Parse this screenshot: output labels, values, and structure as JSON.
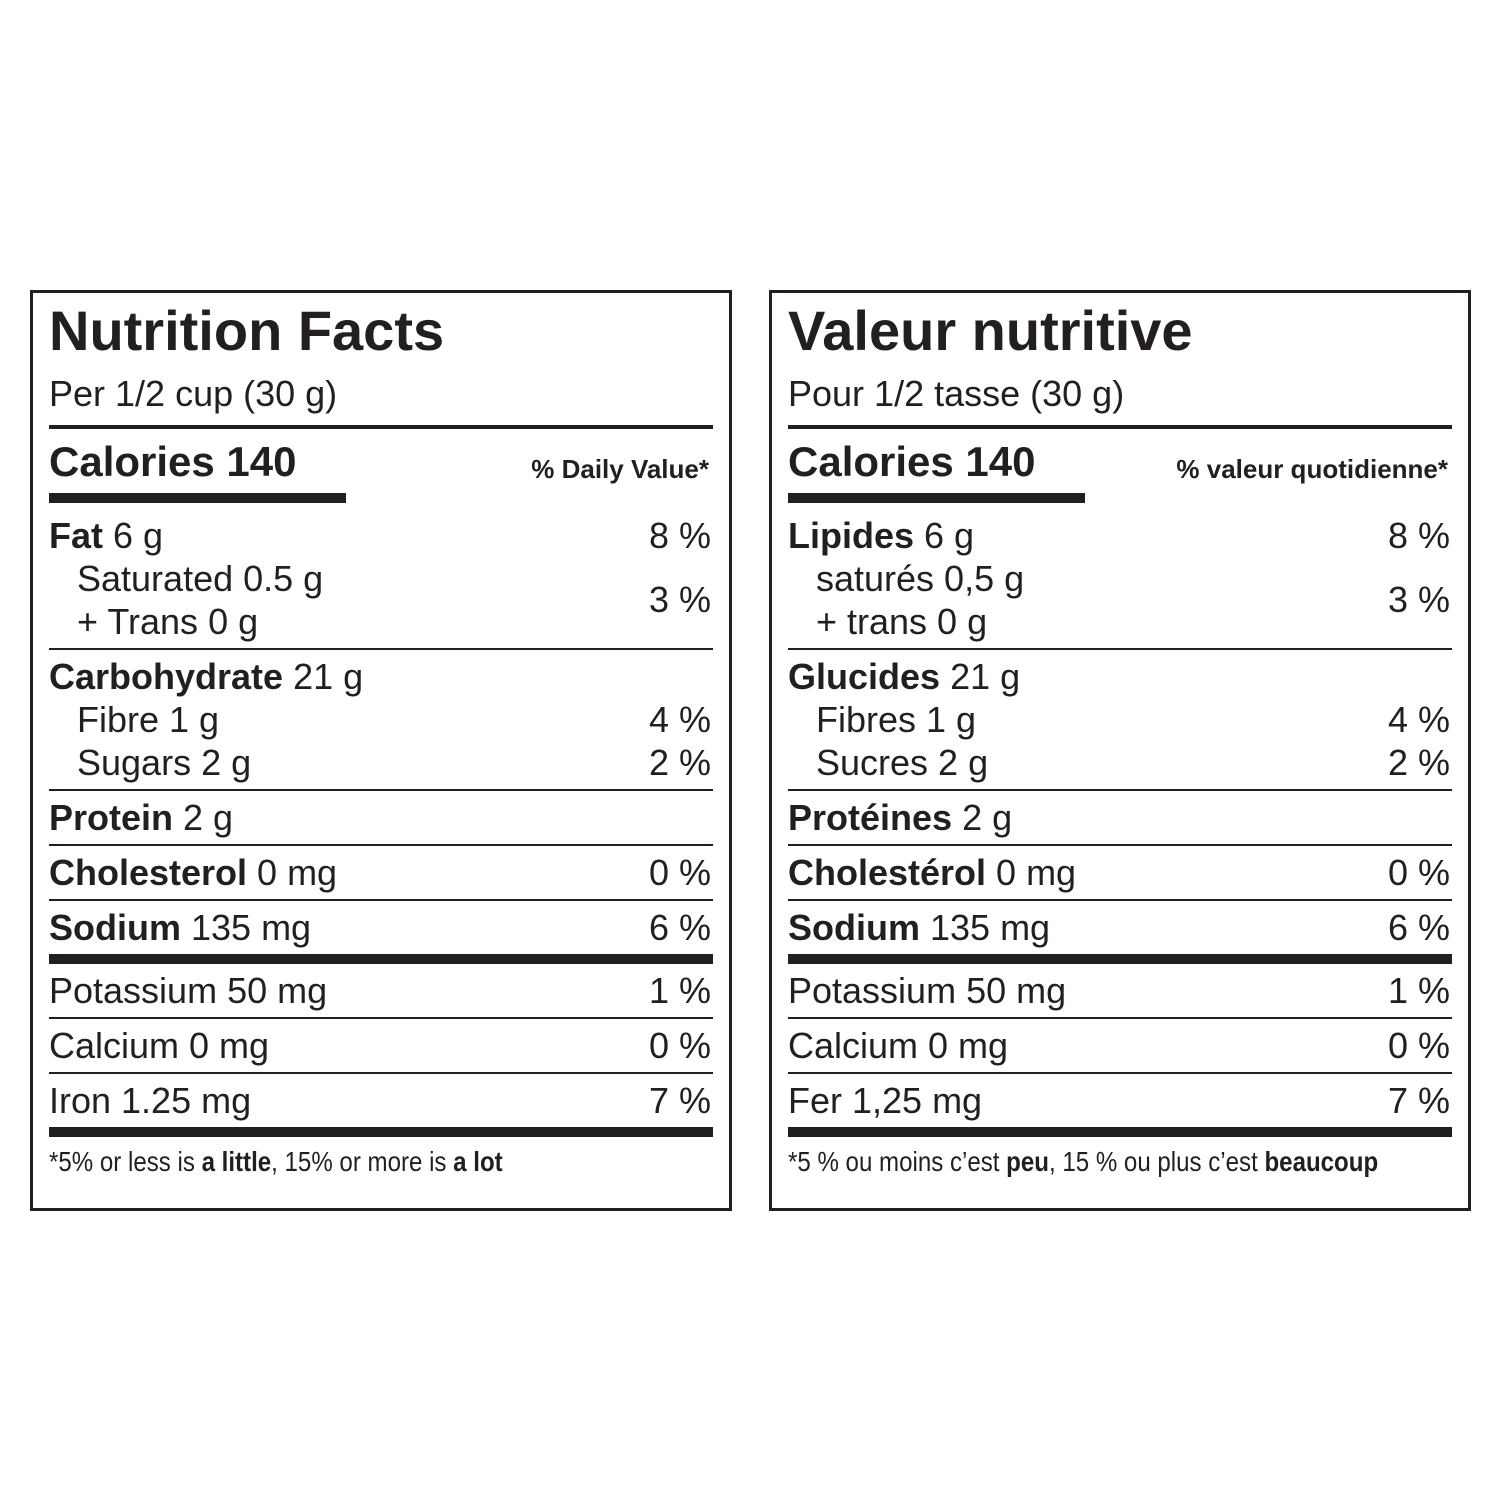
{
  "panels": [
    {
      "title": "Nutrition Facts",
      "serving": "Per 1/2 cup (30 g)",
      "calories": "Calories 140",
      "dv_header": "% Daily Value*",
      "groups": [
        [
          {
            "name": "Fat",
            "amount": "6 g",
            "dv": "8 %"
          },
          {
            "lines": [
              "Saturated 0.5 g",
              "+ Trans 0 g"
            ],
            "dv": "3 %"
          }
        ],
        [
          {
            "name": "Carbohydrate",
            "amount": "21 g"
          },
          {
            "lines": [
              "Fibre 1 g"
            ],
            "dv": "4 %"
          },
          {
            "lines": [
              "Sugars 2 g"
            ],
            "dv": "2 %"
          }
        ],
        [
          {
            "name": "Protein",
            "amount": "2 g"
          }
        ],
        [
          {
            "name": "Cholesterol",
            "amount": "0 mg",
            "dv": "0 %"
          }
        ],
        [
          {
            "name": "Sodium",
            "amount": "135 mg",
            "dv": "6 %"
          }
        ]
      ],
      "minerals": [
        {
          "text": "Potassium 50 mg",
          "dv": "1 %"
        },
        {
          "text": "Calcium 0 mg",
          "dv": "0 %"
        },
        {
          "text": "Iron 1.25 mg",
          "dv": "7 %"
        }
      ],
      "footnote": [
        "*5% or less is ",
        "a little",
        ", 15% or more is ",
        "a lot"
      ]
    },
    {
      "title": "Valeur nutritive",
      "serving": "Pour 1/2 tasse (30 g)",
      "calories": "Calories 140",
      "dv_header": "% valeur quotidienne*",
      "groups": [
        [
          {
            "name": "Lipides",
            "amount": "6 g",
            "dv": "8 %"
          },
          {
            "lines": [
              "saturés 0,5 g",
              "+ trans 0 g"
            ],
            "dv": "3 %"
          }
        ],
        [
          {
            "name": "Glucides",
            "amount": "21 g"
          },
          {
            "lines": [
              "Fibres 1 g"
            ],
            "dv": "4 %"
          },
          {
            "lines": [
              "Sucres 2 g"
            ],
            "dv": "2 %"
          }
        ],
        [
          {
            "name": "Protéines",
            "amount": "2 g"
          }
        ],
        [
          {
            "name": "Cholestérol",
            "amount": "0 mg",
            "dv": "0 %"
          }
        ],
        [
          {
            "name": "Sodium",
            "amount": "135 mg",
            "dv": "6 %"
          }
        ]
      ],
      "minerals": [
        {
          "text": "Potassium 50 mg",
          "dv": "1 %"
        },
        {
          "text": "Calcium 0 mg",
          "dv": "0 %"
        },
        {
          "text": "Fer 1,25 mg",
          "dv": "7 %"
        }
      ],
      "footnote": [
        "*5 % ou moins c’est ",
        "peu",
        ", 15 % ou plus c’est ",
        "beaucoup"
      ]
    }
  ]
}
